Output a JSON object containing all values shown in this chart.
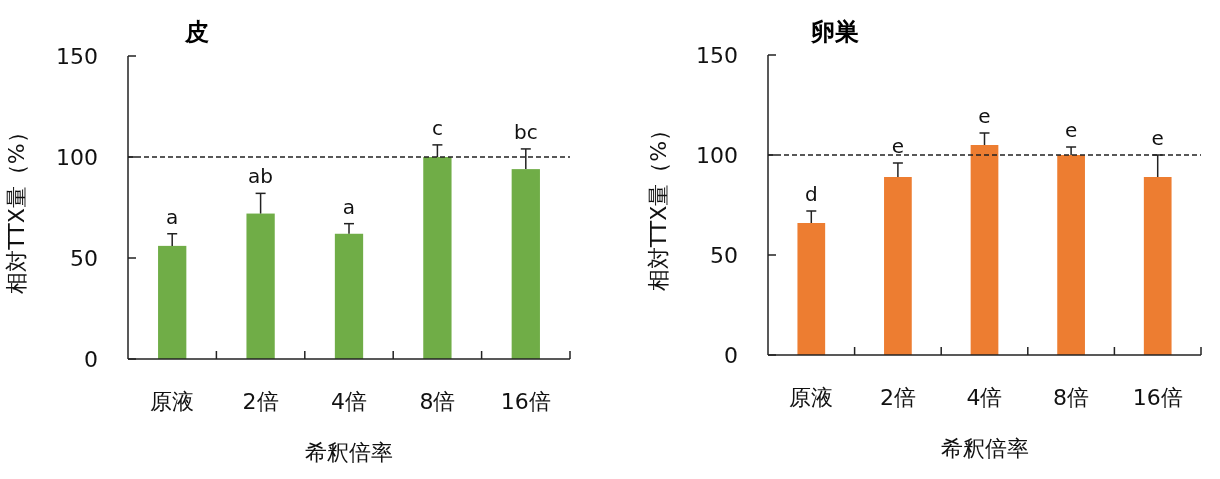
{
  "chart_data": [
    {
      "type": "bar",
      "title": "皮",
      "xlabel": "希釈倍率",
      "ylabel": "相対TTX量（%）",
      "categories": [
        "原液",
        "2倍",
        "4倍",
        "8倍",
        "16倍"
      ],
      "values": [
        56,
        72,
        62,
        100,
        94
      ],
      "color": "#70ad47",
      "errors": [
        [
          56,
          62
        ],
        [
          72,
          82
        ],
        [
          62,
          67
        ],
        [
          100,
          106
        ],
        [
          94,
          104
        ]
      ],
      "ylim": [
        0,
        150
      ],
      "yticks": [
        0,
        50,
        100,
        150
      ],
      "ref_lines": [
        {
          "axis": "y",
          "value": 100,
          "line_style": "dashed"
        }
      ],
      "annotations": [
        {
          "text": "a",
          "x": "原液",
          "y": 62
        },
        {
          "text": "ab",
          "x": "2倍",
          "y": 82
        },
        {
          "text": "a",
          "x": "4倍",
          "y": 67
        },
        {
          "text": "c",
          "x": "8倍",
          "y": 106
        },
        {
          "text": "bc",
          "x": "16倍",
          "y": 104
        }
      ]
    },
    {
      "type": "bar",
      "title": "卵巣",
      "xlabel": "希釈倍率",
      "ylabel": "相対TTX量（%）",
      "categories": [
        "原液",
        "2倍",
        "4倍",
        "8倍",
        "16倍"
      ],
      "values": [
        66,
        89,
        105,
        100,
        89
      ],
      "color": "#ed7d31",
      "errors": [
        [
          66,
          72
        ],
        [
          89,
          96
        ],
        [
          105,
          111
        ],
        [
          100,
          104
        ],
        [
          89,
          100
        ]
      ],
      "ylim": [
        0,
        150
      ],
      "yticks": [
        0,
        50,
        100,
        150
      ],
      "ref_lines": [
        {
          "axis": "y",
          "value": 100,
          "line_style": "dashed"
        }
      ],
      "annotations": [
        {
          "text": "d",
          "x": "原液",
          "y": 72
        },
        {
          "text": "e",
          "x": "2倍",
          "y": 96
        },
        {
          "text": "e",
          "x": "4倍",
          "y": 111
        },
        {
          "text": "e",
          "x": "8倍",
          "y": 104
        },
        {
          "text": "e",
          "x": "16倍",
          "y": 100
        }
      ]
    }
  ]
}
